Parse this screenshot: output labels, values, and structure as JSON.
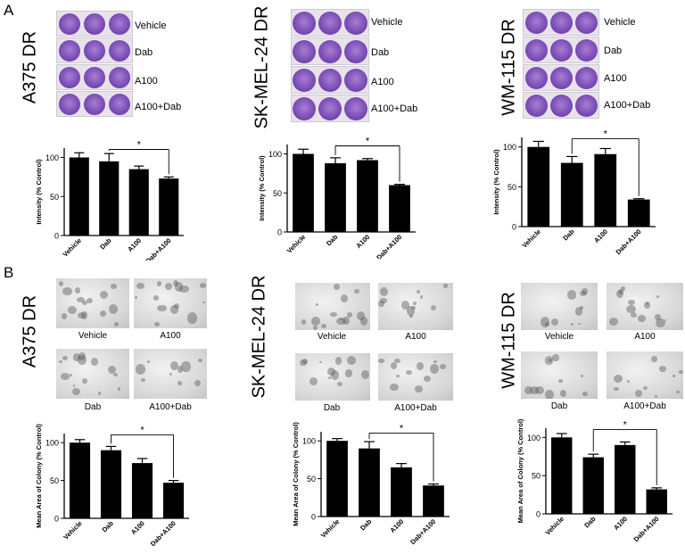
{
  "panels": {
    "A": "A",
    "B": "B"
  },
  "cell_lines": [
    "A375 DR",
    "SK-MEL-24 DR",
    "WM-115 DR"
  ],
  "plate_labels": [
    "Vehicle",
    "Dab",
    "A100",
    "A100+Dab"
  ],
  "micro_labels": {
    "top_left": "Vehicle",
    "top_right": "A100",
    "bottom_left": "Dab",
    "bottom_right": "A100+Dab"
  },
  "significance_mark": "*",
  "chart_data": [
    {
      "type": "bar",
      "panel": "A",
      "cell_line": "A375 DR",
      "categories": [
        "Vehicle",
        "Dab",
        "A100",
        "Dab+A100"
      ],
      "values": [
        100,
        95,
        85,
        73
      ],
      "errors": [
        6,
        10,
        4,
        2
      ],
      "ylabel": "Intensity (% Control)",
      "ylim": [
        0,
        112
      ],
      "yticks": [
        0,
        50,
        100
      ],
      "significance": {
        "from": 1,
        "to": 3,
        "label": "*"
      }
    },
    {
      "type": "bar",
      "panel": "A",
      "cell_line": "SK-MEL-24 DR",
      "categories": [
        "Vehicle",
        "Dab",
        "A100",
        "Dab+A100"
      ],
      "values": [
        100,
        88,
        92,
        60
      ],
      "errors": [
        6,
        7,
        2,
        1
      ],
      "ylabel": "Intensity (% Control)",
      "ylim": [
        0,
        112
      ],
      "yticks": [
        0,
        50,
        100
      ],
      "significance": {
        "from": 1,
        "to": 3,
        "label": "*"
      }
    },
    {
      "type": "bar",
      "panel": "A",
      "cell_line": "WM-115 DR",
      "categories": [
        "Vehicle",
        "Dab",
        "A100",
        "Dab+A100"
      ],
      "values": [
        100,
        80,
        91,
        34
      ],
      "errors": [
        7,
        8,
        7,
        1
      ],
      "ylabel": "Intensity (% Control)",
      "ylim": [
        0,
        112
      ],
      "yticks": [
        0,
        50,
        100
      ],
      "significance": {
        "from": 1,
        "to": 3,
        "label": "*"
      }
    },
    {
      "type": "bar",
      "panel": "B",
      "cell_line": "A375 DR",
      "categories": [
        "Vehicle",
        "Dab",
        "A100",
        "Dab+A100"
      ],
      "values": [
        100,
        90,
        73,
        47
      ],
      "errors": [
        4,
        5,
        6,
        3
      ],
      "ylabel": "Mean Area of Colony (% Control)",
      "ylim": [
        0,
        112
      ],
      "yticks": [
        0,
        50,
        100
      ],
      "significance": {
        "from": 1,
        "to": 3,
        "label": "*"
      }
    },
    {
      "type": "bar",
      "panel": "B",
      "cell_line": "SK-MEL-24 DR",
      "categories": [
        "Vehicle",
        "Dab",
        "A100",
        "Dab+A100"
      ],
      "values": [
        100,
        90,
        65,
        41
      ],
      "errors": [
        3,
        9,
        5,
        2
      ],
      "ylabel": "Mean Area of Colony (% Control)",
      "ylim": [
        0,
        112
      ],
      "yticks": [
        0,
        50,
        100
      ],
      "significance": {
        "from": 1,
        "to": 3,
        "label": "*"
      }
    },
    {
      "type": "bar",
      "panel": "B",
      "cell_line": "WM-115 DR",
      "categories": [
        "Vehicle",
        "Dab",
        "A100",
        "Dab+A100"
      ],
      "values": [
        100,
        74,
        90,
        32
      ],
      "errors": [
        5,
        4,
        4,
        2
      ],
      "ylabel": "Mean Area of Colony (% Control)",
      "ylim": [
        0,
        112
      ],
      "yticks": [
        0,
        50,
        100
      ],
      "significance": {
        "from": 1,
        "to": 3,
        "label": "*"
      }
    }
  ]
}
